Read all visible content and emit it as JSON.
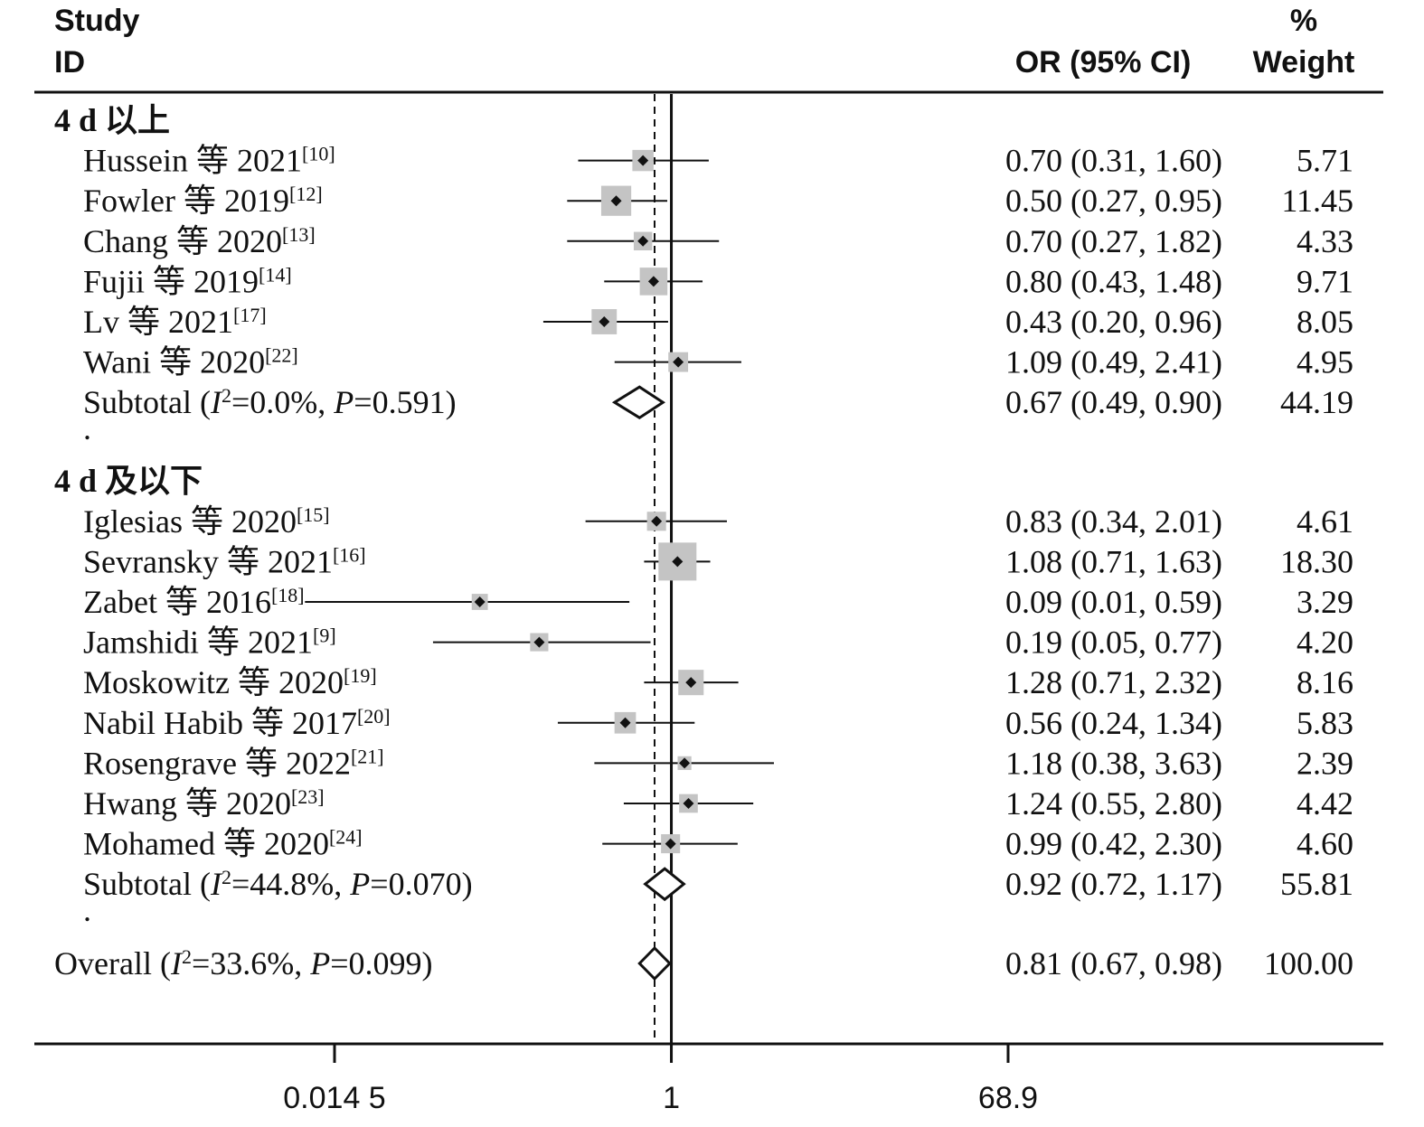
{
  "chart_data": {
    "type": "forest",
    "columns": {
      "study": [
        "Study",
        "ID"
      ],
      "effect": "OR (95% CI)",
      "weight": [
        "%",
        "Weight"
      ]
    },
    "x_scale": "log",
    "x_ticks": [
      {
        "value": 0.0145,
        "label": "0.014 5"
      },
      {
        "value": 1,
        "label": "1"
      },
      {
        "value": 68.9,
        "label": "68.9"
      }
    ],
    "null_line": 1,
    "overall_line": 0.81,
    "groups": [
      {
        "label": "4 d 以上",
        "studies": [
          {
            "name": "Hussein 等 2021",
            "ref": "[10]",
            "or": 0.7,
            "lo": 0.31,
            "hi": 1.6,
            "ci_text": "0.70 (0.31, 1.60)",
            "weight": 5.71,
            "weight_text": "5.71"
          },
          {
            "name": "Fowler 等 2019",
            "ref": "[12]",
            "or": 0.5,
            "lo": 0.27,
            "hi": 0.95,
            "ci_text": "0.50 (0.27, 0.95)",
            "weight": 11.45,
            "weight_text": "11.45"
          },
          {
            "name": "Chang 等 2020",
            "ref": "[13]",
            "or": 0.7,
            "lo": 0.27,
            "hi": 1.82,
            "ci_text": "0.70 (0.27, 1.82)",
            "weight": 4.33,
            "weight_text": "4.33"
          },
          {
            "name": "Fujii 等 2019",
            "ref": "[14]",
            "or": 0.8,
            "lo": 0.43,
            "hi": 1.48,
            "ci_text": "0.80 (0.43, 1.48)",
            "weight": 9.71,
            "weight_text": "9.71"
          },
          {
            "name": "Lv 等 2021",
            "ref": "[17]",
            "or": 0.43,
            "lo": 0.2,
            "hi": 0.96,
            "ci_text": "0.43 (0.20, 0.96)",
            "weight": 8.05,
            "weight_text": "8.05"
          },
          {
            "name": "Wani 等 2020",
            "ref": "[22]",
            "or": 1.09,
            "lo": 0.49,
            "hi": 2.41,
            "ci_text": "1.09 (0.49, 2.41)",
            "weight": 4.95,
            "weight_text": "4.95"
          }
        ],
        "subtotal": {
          "label": "Subtotal",
          "i2": "0.0%",
          "p": "0.591",
          "or": 0.67,
          "lo": 0.49,
          "hi": 0.9,
          "ci_text": "0.67 (0.49, 0.90)",
          "weight_text": "44.19"
        }
      },
      {
        "label": "4 d 及以下",
        "studies": [
          {
            "name": "Iglesias 等 2020",
            "ref": "[15]",
            "or": 0.83,
            "lo": 0.34,
            "hi": 2.01,
            "ci_text": "0.83 (0.34, 2.01)",
            "weight": 4.61,
            "weight_text": "4.61"
          },
          {
            "name": "Sevransky 等 2021",
            "ref": "[16]",
            "or": 1.08,
            "lo": 0.71,
            "hi": 1.63,
            "ci_text": "1.08 (0.71, 1.63)",
            "weight": 18.3,
            "weight_text": "18.30"
          },
          {
            "name": "Zabet 等 2016",
            "ref": "[18]",
            "or": 0.09,
            "lo": 0.01,
            "hi": 0.59,
            "ci_text": "0.09 (0.01, 0.59)",
            "weight": 3.29,
            "weight_text": "3.29"
          },
          {
            "name": "Jamshidi 等 2021",
            "ref": "[9]",
            "or": 0.19,
            "lo": 0.05,
            "hi": 0.77,
            "ci_text": "0.19 (0.05, 0.77)",
            "weight": 4.2,
            "weight_text": "4.20"
          },
          {
            "name": "Moskowitz 等 2020",
            "ref": "[19]",
            "or": 1.28,
            "lo": 0.71,
            "hi": 2.32,
            "ci_text": "1.28 (0.71, 2.32)",
            "weight": 8.16,
            "weight_text": "8.16"
          },
          {
            "name": "Nabil Habib 等 2017",
            "ref": "[20]",
            "or": 0.56,
            "lo": 0.24,
            "hi": 1.34,
            "ci_text": "0.56 (0.24, 1.34)",
            "weight": 5.83,
            "weight_text": "5.83"
          },
          {
            "name": "Rosengrave 等 2022",
            "ref": "[21]",
            "or": 1.18,
            "lo": 0.38,
            "hi": 3.63,
            "ci_text": "1.18 (0.38, 3.63)",
            "weight": 2.39,
            "weight_text": "2.39"
          },
          {
            "name": "Hwang 等 2020",
            "ref": "[23]",
            "or": 1.24,
            "lo": 0.55,
            "hi": 2.8,
            "ci_text": "1.24 (0.55, 2.80)",
            "weight": 4.42,
            "weight_text": "4.42"
          },
          {
            "name": "Mohamed 等 2020",
            "ref": "[24]",
            "or": 0.99,
            "lo": 0.42,
            "hi": 2.3,
            "ci_text": "0.99 (0.42, 2.30)",
            "weight": 4.6,
            "weight_text": "4.60"
          }
        ],
        "subtotal": {
          "label": "Subtotal",
          "i2": "44.8%",
          "p": "0.070",
          "or": 0.92,
          "lo": 0.72,
          "hi": 1.17,
          "ci_text": "0.92 (0.72, 1.17)",
          "weight_text": "55.81"
        }
      }
    ],
    "overall": {
      "label": "Overall",
      "i2": "33.6%",
      "p": "0.099",
      "or": 0.81,
      "lo": 0.67,
      "hi": 0.98,
      "ci_text": "0.81 (0.67, 0.98)",
      "weight_text": "100.00"
    },
    "separator": "."
  }
}
